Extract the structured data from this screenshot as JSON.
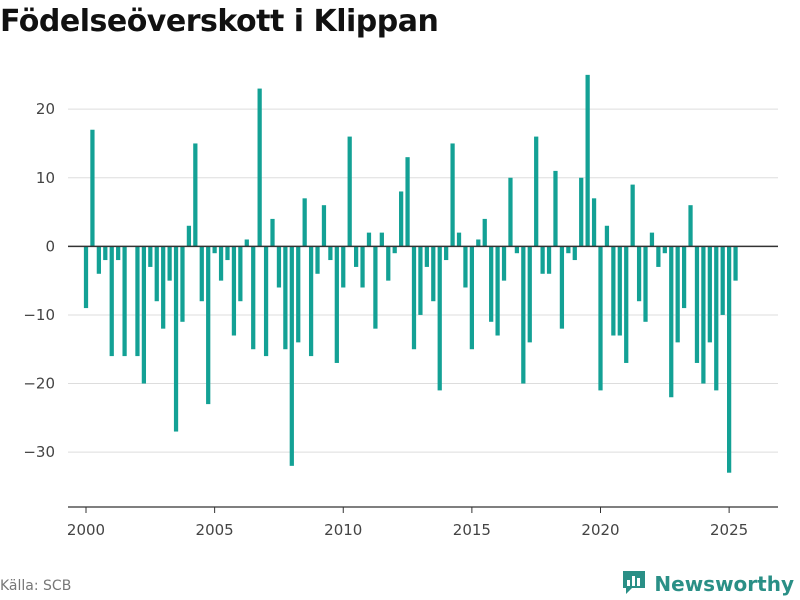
{
  "title": "Födelseöverskott i Klippan",
  "source": "Källa: SCB",
  "brand": {
    "name": "Newsworthy",
    "icon": "newsworthy-logo-icon"
  },
  "colors": {
    "bar": "#13a195",
    "grid": "#dddddd",
    "zero": "#333333",
    "axis": "#333333",
    "brand": "#2a8f86"
  },
  "chart_data": {
    "type": "bar",
    "title": "Födelseöverskott i Klippan",
    "xlabel": "",
    "ylabel": "",
    "ylim": [
      -38,
      26
    ],
    "xlim": [
      1999.3,
      2026.9
    ],
    "x_ticks": [
      2000,
      2005,
      2010,
      2015,
      2020,
      2025
    ],
    "y_ticks": [
      20,
      10,
      0,
      -10,
      -20,
      -30
    ],
    "y_tick_labels": [
      "20",
      "10",
      "0",
      "−10",
      "−20",
      "−30"
    ],
    "grid": true,
    "legend": "none",
    "frequency": "quarterly",
    "x": [
      "2000 Q1",
      "2000 Q2",
      "2000 Q3",
      "2000 Q4",
      "2001 Q1",
      "2001 Q2",
      "2001 Q3",
      "2001 Q4",
      "2002 Q1",
      "2002 Q2",
      "2002 Q3",
      "2002 Q4",
      "2003 Q1",
      "2003 Q2",
      "2003 Q3",
      "2003 Q4",
      "2004 Q1",
      "2004 Q2",
      "2004 Q3",
      "2004 Q4",
      "2005 Q1",
      "2005 Q2",
      "2005 Q3",
      "2005 Q4",
      "2006 Q1",
      "2006 Q2",
      "2006 Q3",
      "2006 Q4",
      "2007 Q1",
      "2007 Q2",
      "2007 Q3",
      "2007 Q4",
      "2008 Q1",
      "2008 Q2",
      "2008 Q3",
      "2008 Q4",
      "2009 Q1",
      "2009 Q2",
      "2009 Q3",
      "2009 Q4",
      "2010 Q1",
      "2010 Q2",
      "2010 Q3",
      "2010 Q4",
      "2011 Q1",
      "2011 Q2",
      "2011 Q3",
      "2011 Q4",
      "2012 Q1",
      "2012 Q2",
      "2012 Q3",
      "2012 Q4",
      "2013 Q1",
      "2013 Q2",
      "2013 Q3",
      "2013 Q4",
      "2014 Q1",
      "2014 Q2",
      "2014 Q3",
      "2014 Q4",
      "2015 Q1",
      "2015 Q2",
      "2015 Q3",
      "2015 Q4",
      "2016 Q1",
      "2016 Q2",
      "2016 Q3",
      "2016 Q4",
      "2017 Q1",
      "2017 Q2",
      "2017 Q3",
      "2017 Q4",
      "2018 Q1",
      "2018 Q2",
      "2018 Q3",
      "2018 Q4",
      "2019 Q1",
      "2019 Q2",
      "2019 Q3",
      "2019 Q4",
      "2020 Q1",
      "2020 Q2",
      "2020 Q3",
      "2020 Q4",
      "2021 Q1",
      "2021 Q2",
      "2021 Q3",
      "2021 Q4",
      "2022 Q1",
      "2022 Q2",
      "2022 Q3",
      "2022 Q4",
      "2023 Q1",
      "2023 Q2",
      "2023 Q3",
      "2023 Q4",
      "2024 Q1",
      "2024 Q2",
      "2024 Q3",
      "2024 Q4",
      "2025 Q1",
      "2025 Q2"
    ],
    "values": [
      -9,
      17,
      -4,
      -2,
      -16,
      -2,
      -16,
      0,
      -16,
      -20,
      -3,
      -8,
      -12,
      -5,
      -27,
      -11,
      3,
      15,
      -8,
      -23,
      -1,
      -5,
      -2,
      -13,
      -8,
      1,
      -15,
      23,
      -16,
      4,
      -6,
      -15,
      -32,
      -14,
      7,
      -16,
      -4,
      6,
      -2,
      -17,
      -6,
      16,
      -3,
      -6,
      2,
      -12,
      2,
      -5,
      -1,
      8,
      13,
      -15,
      -10,
      -3,
      -8,
      -21,
      -2,
      15,
      2,
      -6,
      -15,
      1,
      4,
      -11,
      -13,
      -5,
      10,
      -1,
      -20,
      -14,
      16,
      -4,
      -4,
      11,
      -12,
      -1,
      -2,
      10,
      25,
      7,
      -21,
      3,
      -13,
      -13,
      -17,
      9,
      -8,
      -11,
      2,
      -3,
      -1,
      -22,
      -14,
      -9,
      6,
      -17,
      -20,
      -14,
      -21,
      -10,
      -33,
      -5
    ]
  }
}
